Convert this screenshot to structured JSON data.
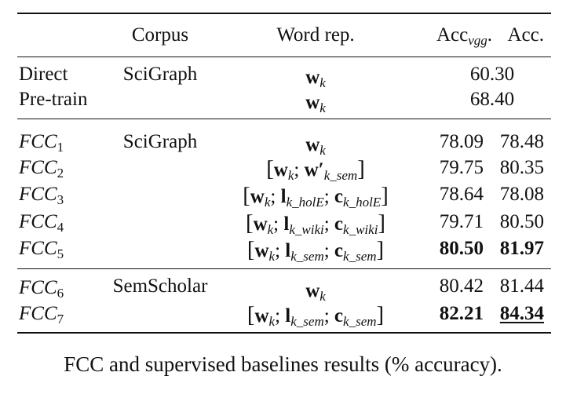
{
  "header": {
    "corpus": "Corpus",
    "word_rep": "Word rep.",
    "acc_vgg_base": "Acc",
    "acc_vgg_sub": "vgg",
    "acc_vgg_suffix": ".",
    "acc": "Acc."
  },
  "baselines": [
    {
      "method": "Direct",
      "corpus": "SciGraph",
      "rep_w": "w",
      "rep_sub": "k",
      "acc_merged": "60.30"
    },
    {
      "method": "Pre-train",
      "corpus": "",
      "rep_w": "w",
      "rep_sub": "k",
      "acc_merged": "68.40"
    }
  ],
  "fcc_group1": [
    {
      "name": "FCC",
      "sub": "1",
      "corpus": "SciGraph",
      "rep": "w_k",
      "acc_vgg": "78.09",
      "acc": "78.48"
    },
    {
      "name": "FCC",
      "sub": "2",
      "corpus": "",
      "rep": "[w_k; w'_k_sem]",
      "acc_vgg": "79.75",
      "acc": "80.35"
    },
    {
      "name": "FCC",
      "sub": "3",
      "corpus": "",
      "rep": "[w_k; l_k_holE; c_k_holE]",
      "acc_vgg": "78.64",
      "acc": "78.08"
    },
    {
      "name": "FCC",
      "sub": "4",
      "corpus": "",
      "rep": "[w_k; l_k_wiki; c_k_wiki]",
      "acc_vgg": "79.71",
      "acc": "80.50"
    },
    {
      "name": "FCC",
      "sub": "5",
      "corpus": "",
      "rep": "[w_k; l_k_sem; c_k_sem]",
      "acc_vgg": "80.50",
      "acc": "81.97"
    }
  ],
  "fcc_group2": [
    {
      "name": "FCC",
      "sub": "6",
      "corpus": "SemScholar",
      "rep": "w_k",
      "acc_vgg": "80.42",
      "acc": "81.44"
    },
    {
      "name": "FCC",
      "sub": "7",
      "corpus": "",
      "rep": "[w_k; l_k_sem; c_k_sem]",
      "acc_vgg": "82.21",
      "acc": "84.34"
    }
  ],
  "caption": "FCC and supervised baselines results (% accuracy)."
}
